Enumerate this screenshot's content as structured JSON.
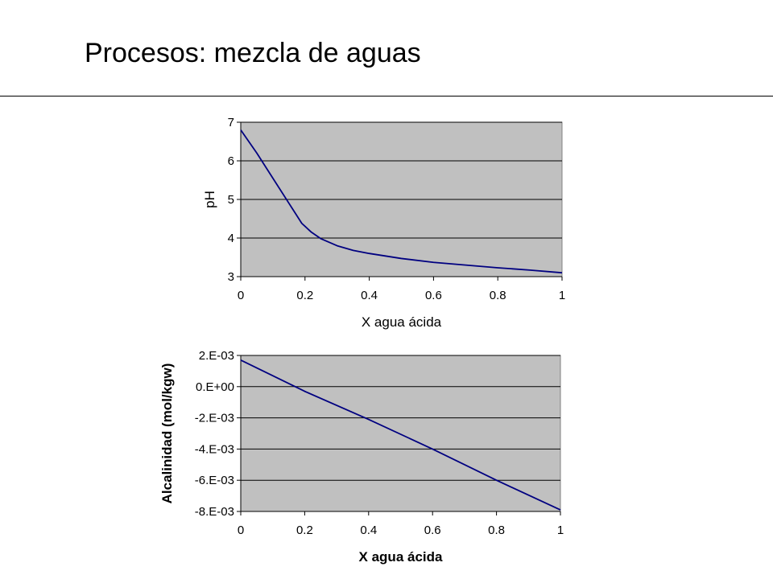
{
  "slide": {
    "title": "Procesos: mezcla de aguas"
  },
  "colors": {
    "plot_background": "#c0c0c0",
    "line": "#000080",
    "grid": "#000000"
  },
  "chart_data": [
    {
      "type": "line",
      "title": "",
      "xlabel": "X agua ácida",
      "ylabel": "pH",
      "xlim": [
        0,
        1
      ],
      "ylim": [
        3,
        7
      ],
      "xticks": [
        "0",
        "0.2",
        "0.4",
        "0.6",
        "0.8",
        "1"
      ],
      "xtick_values": [
        0,
        0.2,
        0.4,
        0.6,
        0.8,
        1
      ],
      "yticks": [
        "3",
        "4",
        "5",
        "6",
        "7"
      ],
      "ytick_values": [
        3,
        4,
        5,
        6,
        7
      ],
      "grid": "horizontal",
      "legend": "none",
      "series": [
        {
          "x": [
            0,
            0.05,
            0.1,
            0.15,
            0.19,
            0.22,
            0.25,
            0.3,
            0.35,
            0.4,
            0.5,
            0.6,
            0.7,
            0.8,
            0.9,
            1.0
          ],
          "values": [
            6.8,
            6.2,
            5.55,
            4.9,
            4.38,
            4.15,
            3.98,
            3.8,
            3.68,
            3.6,
            3.47,
            3.37,
            3.3,
            3.23,
            3.17,
            3.1
          ]
        }
      ]
    },
    {
      "type": "line",
      "title": "",
      "xlabel": "X agua ácida",
      "ylabel": "Alcalinidad (mol/kgw)",
      "xlim": [
        0,
        1
      ],
      "ylim": [
        -0.008,
        0.002
      ],
      "xticks": [
        "0",
        "0.2",
        "0.4",
        "0.6",
        "0.8",
        "1"
      ],
      "xtick_values": [
        0,
        0.2,
        0.4,
        0.6,
        0.8,
        1
      ],
      "yticks": [
        "2.E-03",
        "0.E+00",
        "-2.E-03",
        "-4.E-03",
        "-6.E-03",
        "-8.E-03"
      ],
      "ytick_values": [
        0.002,
        0,
        -0.002,
        -0.004,
        -0.006,
        -0.008
      ],
      "grid": "horizontal",
      "legend": "none",
      "series": [
        {
          "x": [
            0,
            0.2,
            0.4,
            0.6,
            0.8,
            1.0
          ],
          "values": [
            0.0017,
            -0.0003,
            -0.0021,
            -0.004,
            -0.006,
            -0.0079
          ]
        }
      ]
    }
  ]
}
